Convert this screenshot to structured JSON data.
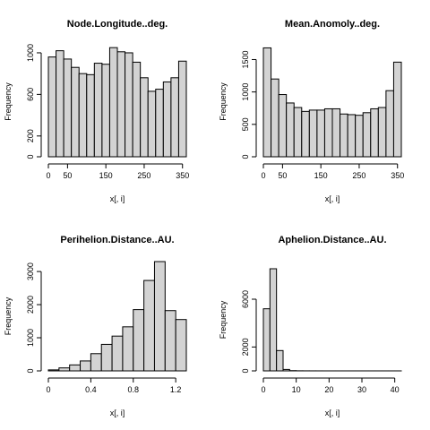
{
  "chart_data": [
    {
      "type": "bar",
      "title": "Node.Longitude..deg.",
      "xlabel": "x[, i]",
      "ylabel": "Frequency",
      "bin_edges": [
        0,
        20,
        40,
        60,
        80,
        100,
        120,
        140,
        160,
        180,
        200,
        220,
        240,
        260,
        280,
        300,
        320,
        340,
        360
      ],
      "values": [
        960,
        1020,
        940,
        860,
        800,
        790,
        900,
        890,
        1050,
        1010,
        1000,
        910,
        760,
        630,
        650,
        720,
        760,
        920
      ],
      "xlim": [
        0,
        360
      ],
      "ylim": [
        0,
        1060
      ],
      "x_ticks": [
        0,
        50,
        150,
        250,
        350
      ],
      "y_ticks": [
        0,
        200,
        600,
        1000
      ],
      "grid": false
    },
    {
      "type": "bar",
      "title": "Mean.Anomoly..deg.",
      "xlabel": "x[, i]",
      "ylabel": "Frequency",
      "bin_edges": [
        0,
        20,
        40,
        60,
        80,
        100,
        120,
        140,
        160,
        180,
        200,
        220,
        240,
        260,
        280,
        300,
        320,
        340,
        360
      ],
      "values": [
        1680,
        1200,
        960,
        830,
        760,
        700,
        720,
        720,
        740,
        740,
        660,
        650,
        640,
        680,
        740,
        760,
        1020,
        1460
      ],
      "xlim": [
        0,
        360
      ],
      "ylim": [
        0,
        1700
      ],
      "x_ticks": [
        0,
        50,
        150,
        250,
        350
      ],
      "y_ticks": [
        0,
        500,
        1000,
        1500
      ],
      "grid": false
    },
    {
      "type": "bar",
      "title": "Perihelion.Distance..AU.",
      "xlabel": "x[, i]",
      "ylabel": "Frequency",
      "bin_edges": [
        0.0,
        0.1,
        0.2,
        0.3,
        0.4,
        0.5,
        0.6,
        0.7,
        0.8,
        0.9,
        1.0,
        1.1,
        1.2,
        1.3
      ],
      "values": [
        30,
        90,
        180,
        300,
        520,
        800,
        1050,
        1330,
        1850,
        2730,
        3300,
        1820,
        1550
      ],
      "xlim": [
        0,
        1.3
      ],
      "ylim": [
        0,
        3300
      ],
      "x_ticks": [
        0.0,
        0.4,
        0.8,
        1.2
      ],
      "y_ticks": [
        0,
        1000,
        2000,
        3000
      ],
      "grid": false
    },
    {
      "type": "bar",
      "title": "Aphelion.Distance..AU.",
      "xlabel": "x[, i]",
      "ylabel": "Frequency",
      "bin_edges": [
        0,
        2,
        4,
        6,
        8,
        10,
        12,
        14,
        16,
        18,
        20,
        22,
        24,
        26,
        28,
        30,
        32,
        34,
        36,
        38,
        40,
        42
      ],
      "values": [
        5200,
        8550,
        1700,
        120,
        20,
        8,
        5,
        3,
        2,
        1,
        1,
        1,
        1,
        1,
        1,
        1,
        1,
        1,
        1,
        1,
        1
      ],
      "xlim": [
        0,
        42
      ],
      "ylim": [
        0,
        8550
      ],
      "x_ticks": [
        0,
        10,
        20,
        30,
        40
      ],
      "y_ticks": [
        0,
        2000,
        6000
      ],
      "grid": false
    }
  ]
}
